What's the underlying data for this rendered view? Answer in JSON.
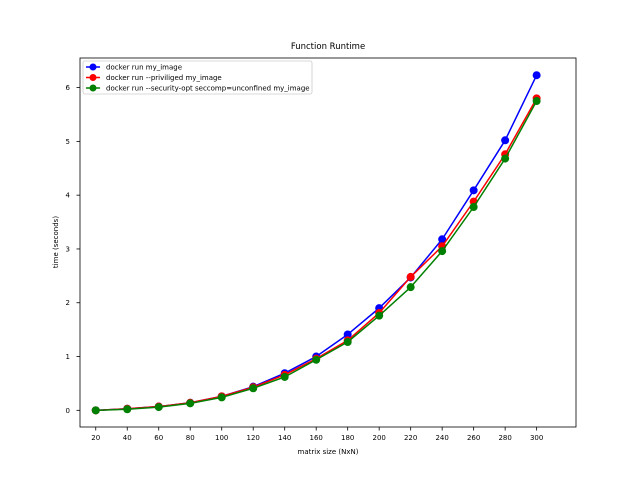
{
  "chart_data": {
    "type": "line",
    "title": "Function Runtime",
    "xlabel": "matrix size (NxN)",
    "ylabel": "time (seconds)",
    "x": [
      20,
      40,
      60,
      80,
      100,
      120,
      140,
      160,
      180,
      200,
      220,
      240,
      260,
      280,
      300
    ],
    "xticks": [
      "20",
      "40",
      "60",
      "80",
      "100",
      "120",
      "140",
      "160",
      "180",
      "200",
      "220",
      "240",
      "260",
      "280",
      "300"
    ],
    "yticks": [
      "0",
      "1",
      "2",
      "3",
      "4",
      "5",
      "6"
    ],
    "xlim": [
      10,
      325
    ],
    "ylim": [
      -0.31,
      6.55
    ],
    "legend_position": "top-left",
    "series": [
      {
        "name": "docker run my_image",
        "color": "#0000ff",
        "values": [
          0.0,
          0.03,
          0.07,
          0.14,
          0.26,
          0.44,
          0.69,
          1.0,
          1.41,
          1.9,
          2.47,
          3.18,
          4.09,
          5.02,
          6.23
        ]
      },
      {
        "name": "docker run --priviliged my_image",
        "color": "#ff0000",
        "values": [
          0.0,
          0.03,
          0.07,
          0.14,
          0.26,
          0.43,
          0.66,
          0.96,
          1.3,
          1.81,
          2.48,
          3.05,
          3.88,
          4.76,
          5.8
        ]
      },
      {
        "name": "docker run --security-opt seccomp=unconfined my_image",
        "color": "#008000",
        "values": [
          0.0,
          0.02,
          0.06,
          0.13,
          0.24,
          0.41,
          0.62,
          0.94,
          1.27,
          1.76,
          2.29,
          2.96,
          3.78,
          4.68,
          5.75
        ]
      }
    ]
  }
}
